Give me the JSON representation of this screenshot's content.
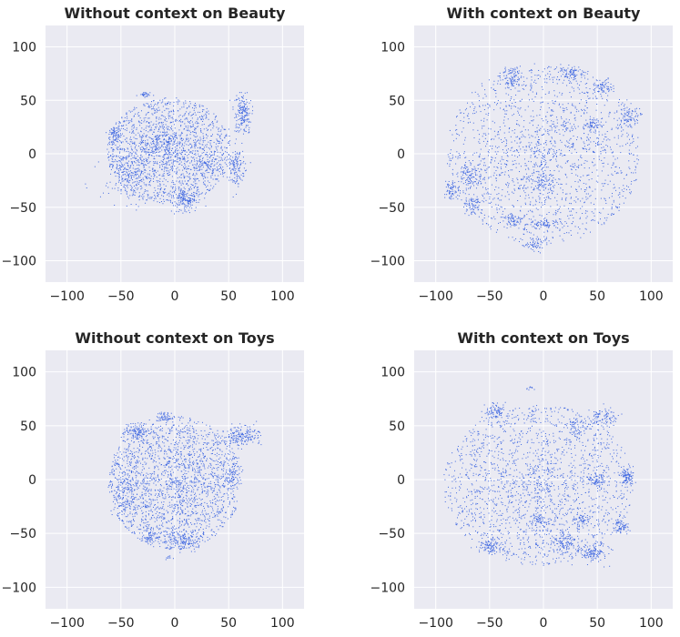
{
  "figure": {
    "background": "#ffffff",
    "axes_facecolor": "#eaeaf2",
    "grid_color": "#ffffff",
    "point_color": "#4169e1"
  },
  "chart_data": [
    {
      "type": "scatter",
      "title": "Without context on Beauty",
      "xlim": [
        -120,
        120
      ],
      "ylim": [
        -120,
        120
      ],
      "xticks": [
        -100,
        -50,
        0,
        50,
        100
      ],
      "yticks": [
        -100,
        -50,
        0,
        50,
        100
      ],
      "grid": true,
      "color": "#4169e1",
      "point_count": 2600,
      "seed": 11,
      "cloud": {
        "cx": -5,
        "cy": 3,
        "rx": 58,
        "ry": 50
      },
      "clusters": [
        {
          "x": 63,
          "y": 37,
          "sx": 4,
          "sy": 9,
          "w": 0.07
        },
        {
          "x": 57,
          "y": -14,
          "sx": 4,
          "sy": 8,
          "w": 0.05
        },
        {
          "x": -55,
          "y": 18,
          "sx": 3,
          "sy": 3,
          "w": 0.02
        },
        {
          "x": -27,
          "y": 55,
          "sx": 3,
          "sy": 1.5,
          "w": 0.01
        },
        {
          "x": 10,
          "y": -43,
          "sx": 7,
          "sy": 6,
          "w": 0.05
        },
        {
          "x": -40,
          "y": -20,
          "sx": 14,
          "sy": 14,
          "w": 0.08
        },
        {
          "x": -10,
          "y": 12,
          "sx": 6,
          "sy": 6,
          "w": 0.03
        },
        {
          "x": 30,
          "y": -10,
          "sx": 6,
          "sy": 6,
          "w": 0.03
        }
      ]
    },
    {
      "type": "scatter",
      "title": "With context on Beauty",
      "xlim": [
        -120,
        120
      ],
      "ylim": [
        -120,
        120
      ],
      "xticks": [
        -100,
        -50,
        0,
        50,
        100
      ],
      "yticks": [
        -100,
        -50,
        0,
        50,
        100
      ],
      "grid": true,
      "color": "#4169e1",
      "point_count": 2600,
      "seed": 23,
      "cloud": {
        "cx": 0,
        "cy": 0,
        "rx": 90,
        "ry": 85
      },
      "clusters": [
        {
          "x": -28,
          "y": 72,
          "sx": 5,
          "sy": 5,
          "w": 0.04
        },
        {
          "x": 25,
          "y": 76,
          "sx": 6,
          "sy": 3,
          "w": 0.03
        },
        {
          "x": 55,
          "y": 62,
          "sx": 5,
          "sy": 4,
          "w": 0.03
        },
        {
          "x": 80,
          "y": 35,
          "sx": 5,
          "sy": 6,
          "w": 0.03
        },
        {
          "x": -68,
          "y": -20,
          "sx": 5,
          "sy": 6,
          "w": 0.04
        },
        {
          "x": -85,
          "y": -35,
          "sx": 3,
          "sy": 4,
          "w": 0.02
        },
        {
          "x": -65,
          "y": -48,
          "sx": 5,
          "sy": 4,
          "w": 0.03
        },
        {
          "x": -2,
          "y": -27,
          "sx": 6,
          "sy": 7,
          "w": 0.04
        },
        {
          "x": -2,
          "y": -65,
          "sx": 8,
          "sy": 3,
          "w": 0.03
        },
        {
          "x": -8,
          "y": -85,
          "sx": 5,
          "sy": 3,
          "w": 0.02
        },
        {
          "x": 45,
          "y": 25,
          "sx": 4,
          "sy": 4,
          "w": 0.02
        },
        {
          "x": -28,
          "y": -62,
          "sx": 4,
          "sy": 3,
          "w": 0.02
        }
      ]
    },
    {
      "type": "scatter",
      "title": "Without context on Toys",
      "xlim": [
        -120,
        120
      ],
      "ylim": [
        -120,
        120
      ],
      "xticks": [
        -100,
        -50,
        0,
        50,
        100
      ],
      "yticks": [
        -100,
        -50,
        0,
        50,
        100
      ],
      "grid": true,
      "color": "#4169e1",
      "point_count": 2800,
      "seed": 37,
      "cloud": {
        "cx": 0,
        "cy": -3,
        "rx": 62,
        "ry": 62
      },
      "clusters": [
        {
          "x": 62,
          "y": 40,
          "sx": 9,
          "sy": 5,
          "w": 0.07
        },
        {
          "x": -35,
          "y": 45,
          "sx": 7,
          "sy": 4,
          "w": 0.04
        },
        {
          "x": -10,
          "y": 58,
          "sx": 4,
          "sy": 3,
          "w": 0.02
        },
        {
          "x": 10,
          "y": -57,
          "sx": 7,
          "sy": 5,
          "w": 0.04
        },
        {
          "x": -22,
          "y": -52,
          "sx": 5,
          "sy": 4,
          "w": 0.03
        },
        {
          "x": -45,
          "y": -15,
          "sx": 6,
          "sy": 14,
          "w": 0.05
        },
        {
          "x": 52,
          "y": 5,
          "sx": 5,
          "sy": 7,
          "w": 0.03
        },
        {
          "x": -5,
          "y": -72,
          "sx": 1.5,
          "sy": 1,
          "w": 0.003
        }
      ]
    },
    {
      "type": "scatter",
      "title": "With context on Toys",
      "xlim": [
        -120,
        120
      ],
      "ylim": [
        -120,
        120
      ],
      "xticks": [
        -100,
        -50,
        0,
        50,
        100
      ],
      "yticks": [
        -100,
        -50,
        0,
        50,
        100
      ],
      "grid": true,
      "color": "#4169e1",
      "point_count": 2800,
      "seed": 53,
      "cloud": {
        "cx": -5,
        "cy": -5,
        "rx": 88,
        "ry": 75
      },
      "clusters": [
        {
          "x": -45,
          "y": 63,
          "sx": 5,
          "sy": 4,
          "w": 0.03
        },
        {
          "x": 55,
          "y": 58,
          "sx": 7,
          "sy": 4,
          "w": 0.04
        },
        {
          "x": 78,
          "y": 3,
          "sx": 3,
          "sy": 4,
          "w": 0.03
        },
        {
          "x": 72,
          "y": -43,
          "sx": 4,
          "sy": 4,
          "w": 0.03
        },
        {
          "x": 45,
          "y": -68,
          "sx": 8,
          "sy": 5,
          "w": 0.05
        },
        {
          "x": 20,
          "y": -58,
          "sx": 5,
          "sy": 5,
          "w": 0.04
        },
        {
          "x": -50,
          "y": -62,
          "sx": 5,
          "sy": 3,
          "w": 0.03
        },
        {
          "x": -12,
          "y": 85,
          "sx": 1.5,
          "sy": 1,
          "w": 0.003
        },
        {
          "x": 30,
          "y": 45,
          "sx": 4,
          "sy": 6,
          "w": 0.02
        },
        {
          "x": 50,
          "y": 0,
          "sx": 4,
          "sy": 4,
          "w": 0.02
        },
        {
          "x": -3,
          "y": -38,
          "sx": 4,
          "sy": 3,
          "w": 0.02
        },
        {
          "x": 35,
          "y": -38,
          "sx": 4,
          "sy": 3,
          "w": 0.02
        }
      ]
    }
  ]
}
